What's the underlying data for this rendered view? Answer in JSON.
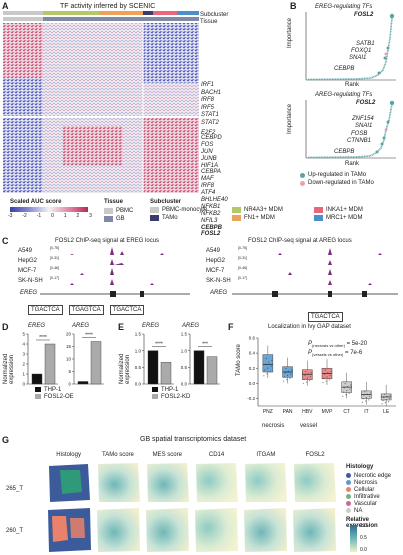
{
  "panels": {
    "A": {
      "label": "A",
      "title": "TF activity inferred by SCENIC",
      "subcluster_label": "Subcluster",
      "tissue_label": "Tissue",
      "genes_top": [
        "IRF1",
        "BACH1",
        "IRF8",
        "IRF5",
        "STAT1",
        "STAT2",
        "E2F2"
      ],
      "genes_bottom": [
        "CEBPD",
        "FOS",
        "JUN",
        "JUNB",
        "HIF1A",
        "CEBPA",
        "MAF",
        "IRF8",
        "ATF4",
        "BHLHE40",
        "NFKB1",
        "NFKB2",
        "NFIL3",
        "CEBPB",
        "FOSL2"
      ],
      "legend_title": "Scaled AUC score",
      "legend_ticks": [
        "-3",
        "-2",
        "-1",
        "0",
        "1",
        "2",
        "3"
      ],
      "tissue_legend_title": "Tissue",
      "tissue_items": [
        {
          "name": "PBMC",
          "color": "#c9c9c9"
        },
        {
          "name": "GB",
          "color": "#7e8aa6"
        }
      ],
      "subcluster_legend_title": "Subcluster",
      "subcluster_items": [
        {
          "name": "PBMC-monocyte",
          "color": "#c9c9c9"
        },
        {
          "name": "NR4A3+ MDM",
          "color": "#b4c76a"
        },
        {
          "name": "INKA1+ MDM",
          "color": "#e9677a"
        },
        {
          "name": "TAMo",
          "color": "#3b3b6b"
        },
        {
          "name": "FN1+ MDM",
          "color": "#efa05a"
        },
        {
          "name": "MRC1+ MDM",
          "color": "#4d8fc9"
        }
      ]
    },
    "B": {
      "label": "B",
      "top_title": "EREG-regulating TFs",
      "top_genes": [
        "FOSL2",
        "SATB1",
        "FOXQ1",
        "SNAI1",
        "CEBPB"
      ],
      "bottom_title": "AREG-regulating TFs",
      "bottom_genes": [
        "FOSL2",
        "ZNF154",
        "SNAI1",
        "FOSB",
        "CTNNB1",
        "CEBPB"
      ],
      "ylabel": "Importance",
      "xlabel": "Rank",
      "legend_up": "Up-regulated in TAMo",
      "legend_down": "Down-regulated in TAMo",
      "color_up": "#5aa4a8",
      "color_down": "#e8a5a5"
    },
    "C": {
      "label": "C",
      "left_title": "FOSL2 ChIP-seq signal at EREG locus",
      "right_title": "FOSL2 ChIP-seq signal at AREG locus",
      "cell_lines": [
        "A549",
        "HepG2",
        "MCF-7",
        "SK-N-SH"
      ],
      "ranges_left": [
        "[0-75]",
        "[0-31]",
        "[0-46]",
        "[0-17]"
      ],
      "ranges_right": [
        "[0-75]",
        "[0-31]",
        "[0-46]",
        "[0-17]"
      ],
      "gene_left": "EREG",
      "gene_right": "AREG",
      "motifs_left": [
        "TGACTCA",
        "TGAGTCA",
        "TGACTCA"
      ],
      "motifs_right": [
        "TGACTCA"
      ],
      "track_color": "#7b2d7b"
    },
    "D": {
      "label": "D",
      "ylabel": "Normalized expression",
      "gene1": "EREG",
      "gene2": "AREG",
      "legend": [
        "THP-1",
        "FOSL2-OE"
      ],
      "sig1": "****",
      "sig2": "****"
    },
    "E": {
      "label": "E",
      "ylabel": "Normalized expression",
      "gene1": "EREG",
      "gene2": "AREG",
      "legend": [
        "THP-1",
        "FOSL2-KD"
      ],
      "sig1": "****",
      "sig2": "***"
    },
    "F": {
      "label": "F",
      "title": "Localization in Ivy GAP dataset",
      "ylabel": "TAMo score",
      "categories": [
        "PNZ",
        "PAN",
        "HBV",
        "MVP",
        "CT",
        "IT",
        "LE"
      ],
      "group1": "necrosis",
      "group2": "vessel",
      "p1_label": "P",
      "p1_sub": "(necrosis vs other)",
      "p1_value": "= 5e-20",
      "p2_label": "P",
      "p2_sub": "(vessels vs other)",
      "p2_value": "= 7e-6"
    },
    "G": {
      "label": "G",
      "title": "GB spatial transcriptomics dataset",
      "columns": [
        "Histology",
        "TAMo score",
        "MES score",
        "CD14",
        "ITGAM",
        "FOSL2"
      ],
      "rows": [
        "265_T",
        "260_T"
      ],
      "histology_legend_title": "Histology",
      "histology_items": [
        {
          "name": "Necrotic edge",
          "color": "#3b5b9a"
        },
        {
          "name": "Necrosis",
          "color": "#5a9ad0"
        },
        {
          "name": "Cellular",
          "color": "#e9826a"
        },
        {
          "name": "Infiltrative",
          "color": "#7ab07a"
        },
        {
          "name": "Vascular",
          "color": "#c86a9a"
        },
        {
          "name": "NA",
          "color": "#cccccc"
        }
      ],
      "expr_legend_title": "Relative expression",
      "expr_ticks": [
        "1.0",
        "0.5",
        "0.0"
      ]
    }
  },
  "chart_data": [
    {
      "type": "bar",
      "panel": "D",
      "categories": [
        "EREG",
        "AREG"
      ],
      "series": [
        {
          "name": "THP-1",
          "values": [
            1.0,
            1.0
          ]
        },
        {
          "name": "FOSL2-OE",
          "values": [
            4.0,
            17.0
          ]
        }
      ],
      "ylim_left": [
        0,
        5
      ],
      "ylim_right": [
        0,
        20
      ],
      "ticks_left": [
        "0",
        "1",
        "2",
        "3",
        "4",
        "5"
      ],
      "ticks_right": [
        "0",
        "5",
        "10",
        "15",
        "20"
      ],
      "ylabel": "Normalized expression"
    },
    {
      "type": "bar",
      "panel": "E",
      "categories": [
        "EREG",
        "AREG"
      ],
      "series": [
        {
          "name": "THP-1",
          "values": [
            1.0,
            1.0
          ]
        },
        {
          "name": "FOSL2-KD",
          "values": [
            0.65,
            0.82
          ]
        }
      ],
      "ylim_left": [
        0,
        1.5
      ],
      "ylim_right": [
        0,
        1.5
      ],
      "ticks_left": [
        "0.0",
        "0.5",
        "1.0",
        "1.5"
      ],
      "ticks_right": [
        "0.0",
        "0.5",
        "1.0",
        "1.5"
      ],
      "ylabel": "Normalized expression"
    },
    {
      "type": "box",
      "panel": "F",
      "categories": [
        "PNZ",
        "PAN",
        "HBV",
        "MVP",
        "CT",
        "IT",
        "LE"
      ],
      "median": [
        0.25,
        0.15,
        0.12,
        0.13,
        -0.05,
        -0.15,
        -0.18
      ],
      "q1": [
        0.15,
        0.08,
        0.05,
        0.06,
        -0.12,
        -0.2,
        -0.22
      ],
      "q3": [
        0.38,
        0.22,
        0.18,
        0.2,
        0.02,
        -0.1,
        -0.14
      ],
      "ylim": [
        -0.3,
        0.6
      ],
      "ticks": [
        "-0.2",
        "0.0",
        "0.2",
        "0.4",
        "0.6"
      ],
      "colors": [
        "#6aa6d8",
        "#6aa6d8",
        "#e88a8a",
        "#e88a8a",
        "#cfcfcf",
        "#cfcfcf",
        "#cfcfcf"
      ]
    }
  ]
}
